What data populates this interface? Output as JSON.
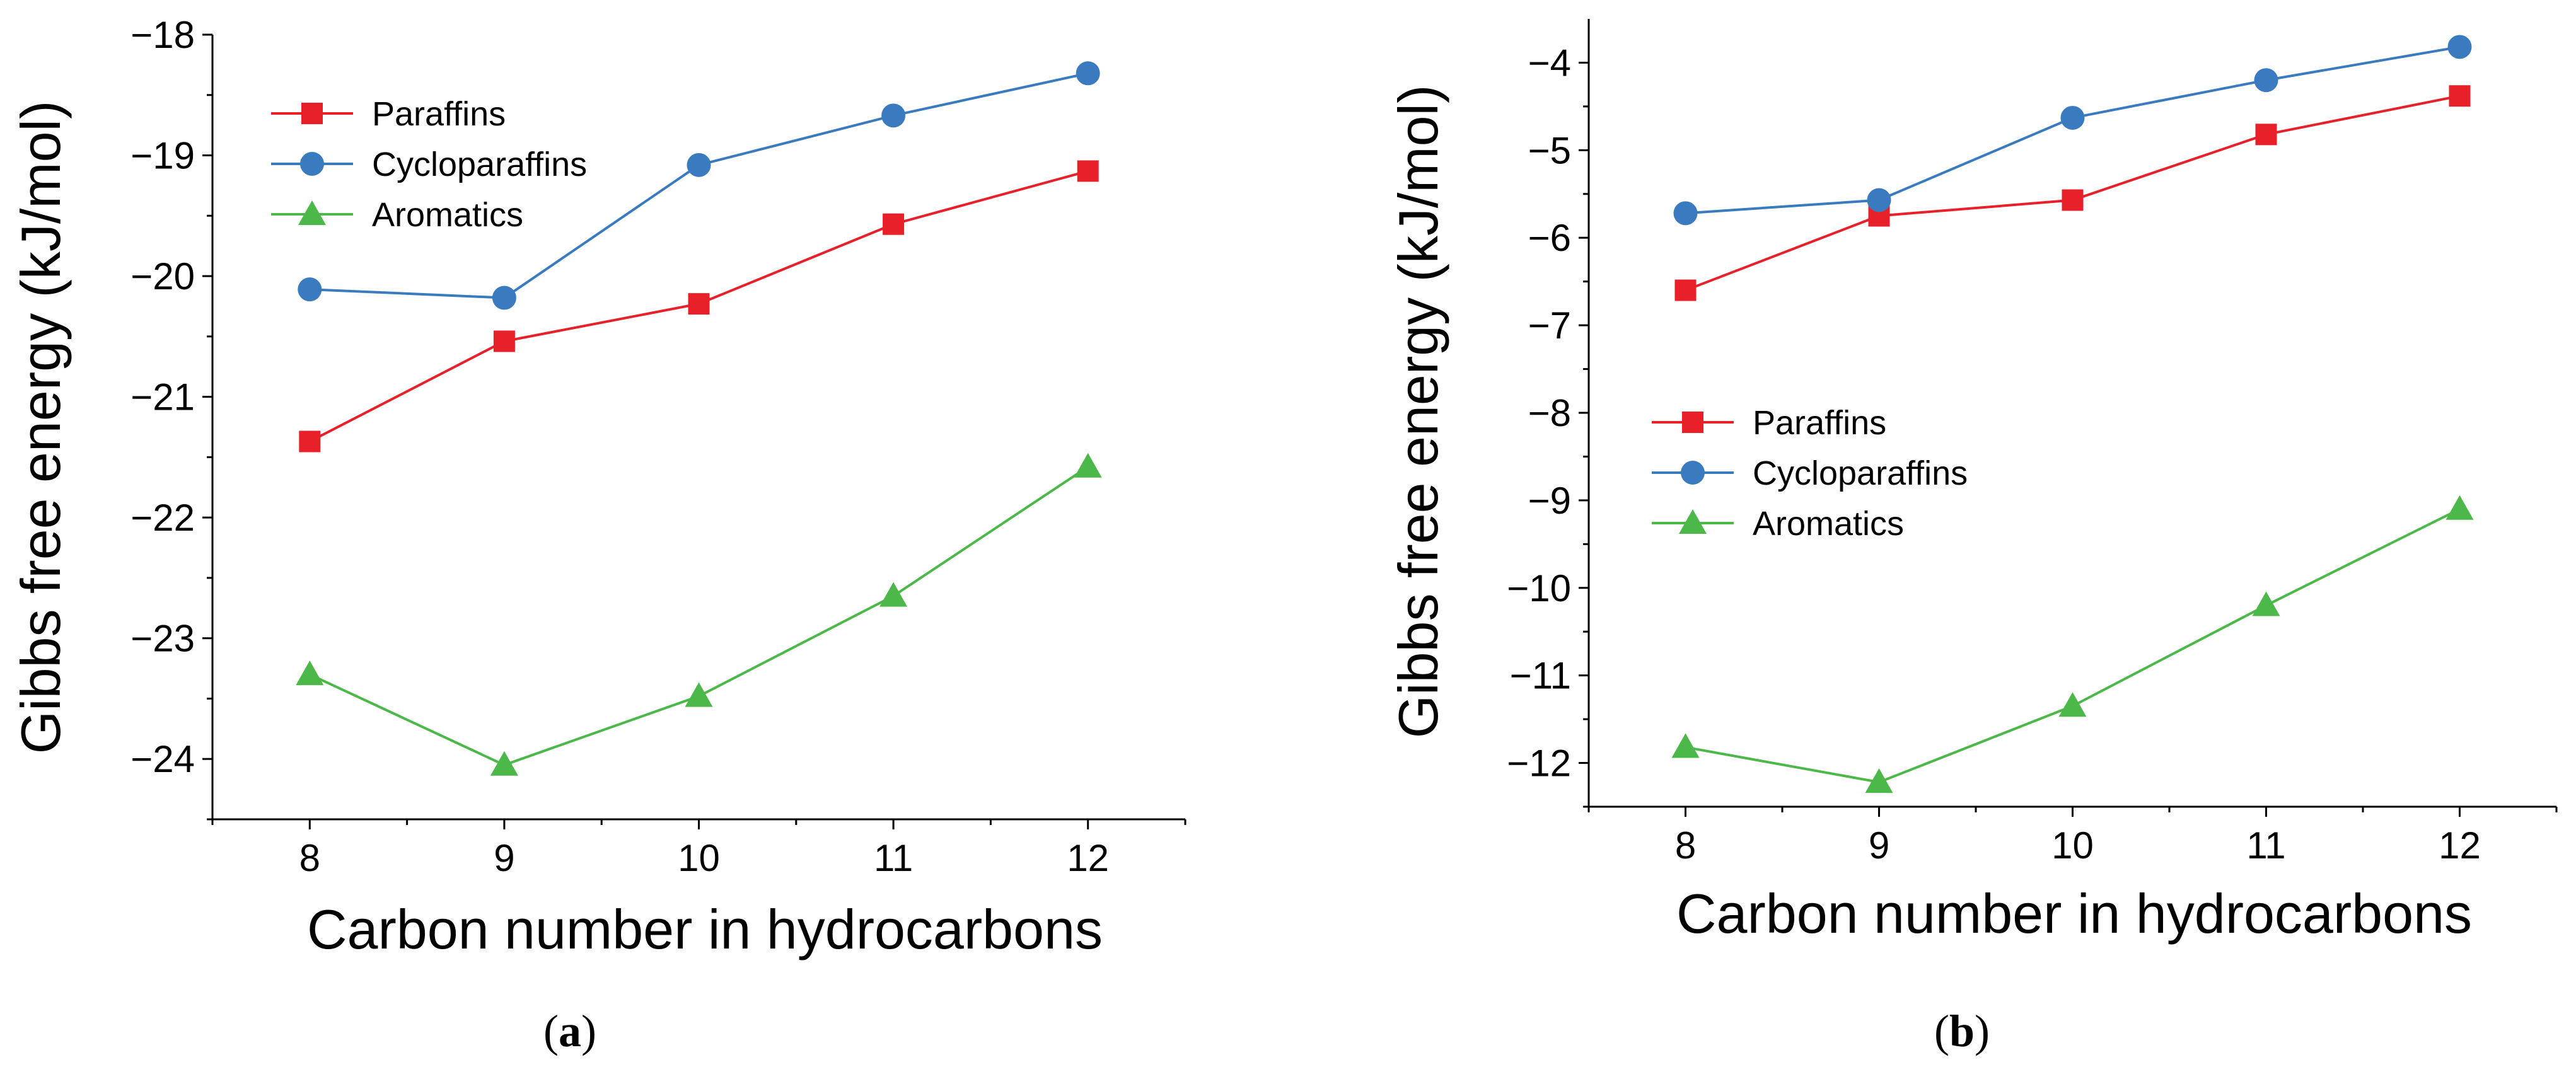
{
  "chart_data": [
    {
      "type": "line",
      "panel_label": "a",
      "xlabel": "Carbon number in hydrocarbons",
      "ylabel": "Gibbs free energy (kJ/mol)",
      "x": [
        8,
        9,
        10,
        11,
        12
      ],
      "xlim": [
        7.5,
        12.5
      ],
      "ylim": [
        -24.5,
        -18
      ],
      "yticks": [
        -18,
        -19,
        -20,
        -21,
        -22,
        -23,
        -24
      ],
      "ytick_labels": [
        "−18",
        "−19",
        "−20",
        "−21",
        "−22",
        "−23",
        "−24"
      ],
      "xtick_labels": [
        "8",
        "9",
        "10",
        "11",
        "12"
      ],
      "legend_position": "top-left",
      "series": [
        {
          "name": "Paraffins",
          "color": "#e8202a",
          "marker": "square",
          "values": [
            -21.37,
            -20.54,
            -20.23,
            -19.57,
            -19.13
          ]
        },
        {
          "name": "Cycloparaffins",
          "color": "#3a7bbf",
          "marker": "circle",
          "values": [
            -20.11,
            -20.18,
            -19.08,
            -18.67,
            -18.32
          ]
        },
        {
          "name": "Aromatics",
          "color": "#4db84a",
          "marker": "triangle",
          "values": [
            -23.3,
            -24.05,
            -23.48,
            -22.65,
            -21.58
          ]
        }
      ]
    },
    {
      "type": "line",
      "panel_label": "b",
      "xlabel": "Carbon number in hydrocarbons",
      "ylabel": "Gibbs free energy (kJ/mol)",
      "x": [
        8,
        9,
        10,
        11,
        12
      ],
      "xlim": [
        7.5,
        12.5
      ],
      "ylim": [
        -12.5,
        -3.5
      ],
      "yticks": [
        -4,
        -5,
        -6,
        -7,
        -8,
        -9,
        -10,
        -11,
        -12
      ],
      "ytick_labels": [
        "−4",
        "−5",
        "−6",
        "−7",
        "−8",
        "−9",
        "−10",
        "−11",
        "−12"
      ],
      "xtick_labels": [
        "8",
        "9",
        "10",
        "11",
        "12"
      ],
      "legend_position": "middle-left",
      "series": [
        {
          "name": "Paraffins",
          "color": "#e8202a",
          "marker": "square",
          "values": [
            -6.6,
            -5.75,
            -5.57,
            -4.82,
            -4.38
          ]
        },
        {
          "name": "Cycloparaffins",
          "color": "#3a7bbf",
          "marker": "circle",
          "values": [
            -5.72,
            -5.57,
            -4.63,
            -4.2,
            -3.82
          ]
        },
        {
          "name": "Aromatics",
          "color": "#4db84a",
          "marker": "triangle",
          "values": [
            -11.82,
            -12.22,
            -11.35,
            -10.2,
            -9.1
          ]
        }
      ]
    }
  ]
}
